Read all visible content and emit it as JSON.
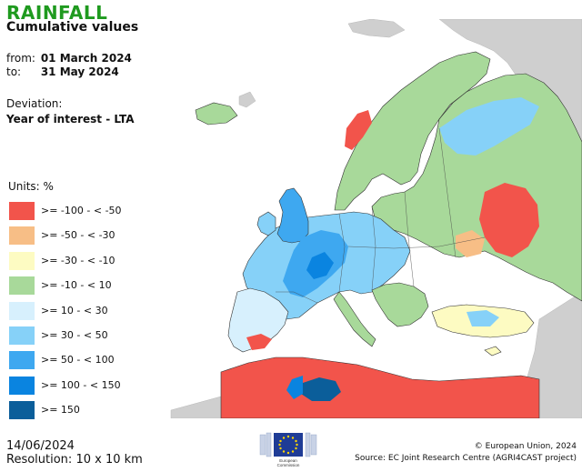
{
  "header": {
    "title": "RAINFALL",
    "subtitle": "Cumulative values"
  },
  "period": {
    "from_label": "from:",
    "from_value": "01 March 2024",
    "to_label": "to:",
    "to_value": "31 May 2024"
  },
  "deviation": {
    "label": "Deviation:",
    "value": "Year of interest - LTA"
  },
  "legend": {
    "units": "Units: %",
    "items": [
      {
        "label": ">= -100 - < -50",
        "color": "#f2544b"
      },
      {
        "label": ">= -50 - < -30",
        "color": "#f7be86"
      },
      {
        "label": ">= -30 - < -10",
        "color": "#fdfbc2"
      },
      {
        "label": ">= -10 - < 10",
        "color": "#a8d99a"
      },
      {
        "label": ">= 10 - < 30",
        "color": "#d7f0fd"
      },
      {
        "label": ">= 30 - < 50",
        "color": "#86d1f8"
      },
      {
        "label": ">= 50 - < 100",
        "color": "#3ea8f0"
      },
      {
        "label": ">= 100 - < 150",
        "color": "#0a84e0"
      },
      {
        "label": ">= 150",
        "color": "#0b5e9a"
      }
    ]
  },
  "footer": {
    "date": "14/06/2024",
    "resolution": "Resolution: 10 x 10 km",
    "copyright": "© European Union, 2024",
    "source": "Source: EC Joint Research Centre (AGRI4CAST project)",
    "logo_text_1": "European",
    "logo_text_2": "Commission"
  },
  "map": {
    "background_sea": "#ffffff",
    "outside_land": "#cfcfcf"
  }
}
